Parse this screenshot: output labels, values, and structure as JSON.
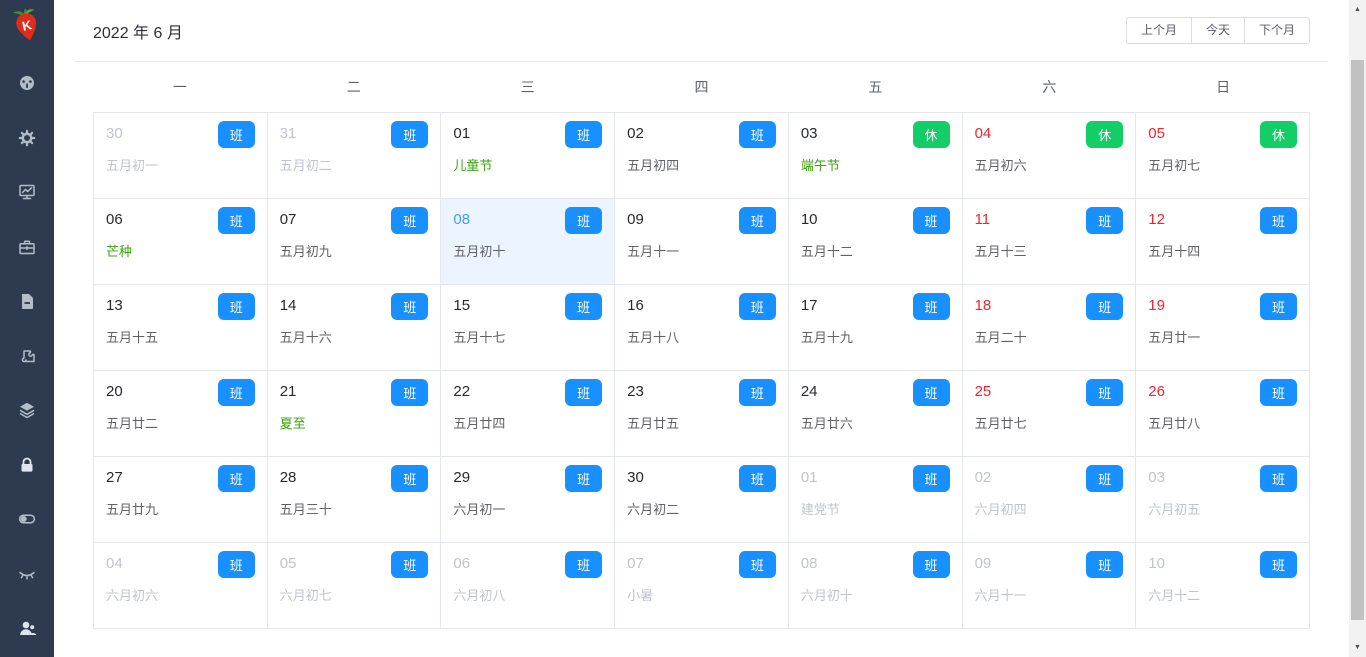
{
  "header": {
    "title": "2022 年 6 月",
    "buttons": [
      {
        "label": "上个月"
      },
      {
        "label": "今天"
      },
      {
        "label": "下个月"
      }
    ]
  },
  "sidebar": {
    "logo": "strawberry-logo",
    "items": [
      {
        "name": "sidebar-item-dashboard",
        "icon": "dashboard-icon"
      },
      {
        "name": "sidebar-item-settings",
        "icon": "gear-icon"
      },
      {
        "name": "sidebar-item-monitor",
        "icon": "monitor-chart-icon"
      },
      {
        "name": "sidebar-item-projects",
        "icon": "briefcase-icon"
      },
      {
        "name": "sidebar-item-documents",
        "icon": "document-icon"
      },
      {
        "name": "sidebar-item-plugins",
        "icon": "puzzle-icon"
      },
      {
        "name": "sidebar-item-layers",
        "icon": "layers-icon"
      },
      {
        "name": "sidebar-item-security",
        "icon": "lock-icon"
      },
      {
        "name": "sidebar-item-switches",
        "icon": "toggle-icon"
      },
      {
        "name": "sidebar-item-visibility",
        "icon": "eye-closed-icon"
      },
      {
        "name": "sidebar-item-user",
        "icon": "user-icon"
      }
    ]
  },
  "calendar": {
    "weekdays": [
      "一",
      "二",
      "三",
      "四",
      "五",
      "六",
      "日"
    ],
    "badge_labels": {
      "work": "班",
      "rest": "休"
    },
    "weeks": [
      [
        {
          "day": "30",
          "lunar": "五月初一",
          "badge": "班",
          "badge_type": "work",
          "day_type": "other",
          "lunar_type": "other"
        },
        {
          "day": "31",
          "lunar": "五月初二",
          "badge": "班",
          "badge_type": "work",
          "day_type": "other",
          "lunar_type": "other"
        },
        {
          "day": "01",
          "lunar": "儿童节",
          "badge": "班",
          "badge_type": "work",
          "day_type": "normal",
          "lunar_type": "festival"
        },
        {
          "day": "02",
          "lunar": "五月初四",
          "badge": "班",
          "badge_type": "work",
          "day_type": "normal",
          "lunar_type": "normal"
        },
        {
          "day": "03",
          "lunar": "端午节",
          "badge": "休",
          "badge_type": "rest",
          "day_type": "normal",
          "lunar_type": "festival"
        },
        {
          "day": "04",
          "lunar": "五月初六",
          "badge": "休",
          "badge_type": "rest",
          "day_type": "red",
          "lunar_type": "normal"
        },
        {
          "day": "05",
          "lunar": "五月初七",
          "badge": "休",
          "badge_type": "rest",
          "day_type": "red",
          "lunar_type": "normal"
        }
      ],
      [
        {
          "day": "06",
          "lunar": "芒种",
          "badge": "班",
          "badge_type": "work",
          "day_type": "normal",
          "lunar_type": "festival"
        },
        {
          "day": "07",
          "lunar": "五月初九",
          "badge": "班",
          "badge_type": "work",
          "day_type": "normal",
          "lunar_type": "normal"
        },
        {
          "day": "08",
          "lunar": "五月初十",
          "badge": "班",
          "badge_type": "work",
          "day_type": "today",
          "lunar_type": "normal"
        },
        {
          "day": "09",
          "lunar": "五月十一",
          "badge": "班",
          "badge_type": "work",
          "day_type": "normal",
          "lunar_type": "normal"
        },
        {
          "day": "10",
          "lunar": "五月十二",
          "badge": "班",
          "badge_type": "work",
          "day_type": "normal",
          "lunar_type": "normal"
        },
        {
          "day": "11",
          "lunar": "五月十三",
          "badge": "班",
          "badge_type": "work",
          "day_type": "red",
          "lunar_type": "normal"
        },
        {
          "day": "12",
          "lunar": "五月十四",
          "badge": "班",
          "badge_type": "work",
          "day_type": "red",
          "lunar_type": "normal"
        }
      ],
      [
        {
          "day": "13",
          "lunar": "五月十五",
          "badge": "班",
          "badge_type": "work",
          "day_type": "normal",
          "lunar_type": "normal"
        },
        {
          "day": "14",
          "lunar": "五月十六",
          "badge": "班",
          "badge_type": "work",
          "day_type": "normal",
          "lunar_type": "normal"
        },
        {
          "day": "15",
          "lunar": "五月十七",
          "badge": "班",
          "badge_type": "work",
          "day_type": "normal",
          "lunar_type": "normal"
        },
        {
          "day": "16",
          "lunar": "五月十八",
          "badge": "班",
          "badge_type": "work",
          "day_type": "normal",
          "lunar_type": "normal"
        },
        {
          "day": "17",
          "lunar": "五月十九",
          "badge": "班",
          "badge_type": "work",
          "day_type": "normal",
          "lunar_type": "normal"
        },
        {
          "day": "18",
          "lunar": "五月二十",
          "badge": "班",
          "badge_type": "work",
          "day_type": "red",
          "lunar_type": "normal"
        },
        {
          "day": "19",
          "lunar": "五月廿一",
          "badge": "班",
          "badge_type": "work",
          "day_type": "red",
          "lunar_type": "normal"
        }
      ],
      [
        {
          "day": "20",
          "lunar": "五月廿二",
          "badge": "班",
          "badge_type": "work",
          "day_type": "normal",
          "lunar_type": "normal"
        },
        {
          "day": "21",
          "lunar": "夏至",
          "badge": "班",
          "badge_type": "work",
          "day_type": "normal",
          "lunar_type": "festival"
        },
        {
          "day": "22",
          "lunar": "五月廿四",
          "badge": "班",
          "badge_type": "work",
          "day_type": "normal",
          "lunar_type": "normal"
        },
        {
          "day": "23",
          "lunar": "五月廿五",
          "badge": "班",
          "badge_type": "work",
          "day_type": "normal",
          "lunar_type": "normal"
        },
        {
          "day": "24",
          "lunar": "五月廿六",
          "badge": "班",
          "badge_type": "work",
          "day_type": "normal",
          "lunar_type": "normal"
        },
        {
          "day": "25",
          "lunar": "五月廿七",
          "badge": "班",
          "badge_type": "work",
          "day_type": "red",
          "lunar_type": "normal"
        },
        {
          "day": "26",
          "lunar": "五月廿八",
          "badge": "班",
          "badge_type": "work",
          "day_type": "red",
          "lunar_type": "normal"
        }
      ],
      [
        {
          "day": "27",
          "lunar": "五月廿九",
          "badge": "班",
          "badge_type": "work",
          "day_type": "normal",
          "lunar_type": "normal"
        },
        {
          "day": "28",
          "lunar": "五月三十",
          "badge": "班",
          "badge_type": "work",
          "day_type": "normal",
          "lunar_type": "normal"
        },
        {
          "day": "29",
          "lunar": "六月初一",
          "badge": "班",
          "badge_type": "work",
          "day_type": "normal",
          "lunar_type": "normal"
        },
        {
          "day": "30",
          "lunar": "六月初二",
          "badge": "班",
          "badge_type": "work",
          "day_type": "normal",
          "lunar_type": "normal"
        },
        {
          "day": "01",
          "lunar": "建党节",
          "badge": "班",
          "badge_type": "work",
          "day_type": "other",
          "lunar_type": "other"
        },
        {
          "day": "02",
          "lunar": "六月初四",
          "badge": "班",
          "badge_type": "work",
          "day_type": "other",
          "lunar_type": "other"
        },
        {
          "day": "03",
          "lunar": "六月初五",
          "badge": "班",
          "badge_type": "work",
          "day_type": "other",
          "lunar_type": "other"
        }
      ],
      [
        {
          "day": "04",
          "lunar": "六月初六",
          "badge": "班",
          "badge_type": "work",
          "day_type": "other",
          "lunar_type": "other"
        },
        {
          "day": "05",
          "lunar": "六月初七",
          "badge": "班",
          "badge_type": "work",
          "day_type": "other",
          "lunar_type": "other"
        },
        {
          "day": "06",
          "lunar": "六月初八",
          "badge": "班",
          "badge_type": "work",
          "day_type": "other",
          "lunar_type": "other"
        },
        {
          "day": "07",
          "lunar": "小暑",
          "badge": "班",
          "badge_type": "work",
          "day_type": "other",
          "lunar_type": "other"
        },
        {
          "day": "08",
          "lunar": "六月初十",
          "badge": "班",
          "badge_type": "work",
          "day_type": "other",
          "lunar_type": "other"
        },
        {
          "day": "09",
          "lunar": "六月十一",
          "badge": "班",
          "badge_type": "work",
          "day_type": "other",
          "lunar_type": "other"
        },
        {
          "day": "10",
          "lunar": "六月十二",
          "badge": "班",
          "badge_type": "work",
          "day_type": "other",
          "lunar_type": "other"
        }
      ]
    ]
  },
  "colors": {
    "sidebar_bg": "#2e3a4f",
    "badge_work": "#1890ff",
    "badge_rest": "#13ce66",
    "weekend_red": "#f5222d",
    "today_text": "#409eff",
    "today_bg": "#ecf5ff",
    "festival_green": "#39a30b",
    "lunar_gray": "#606266",
    "other_month_gray": "#c0c4cc",
    "border_gray": "#e4e7ed"
  }
}
